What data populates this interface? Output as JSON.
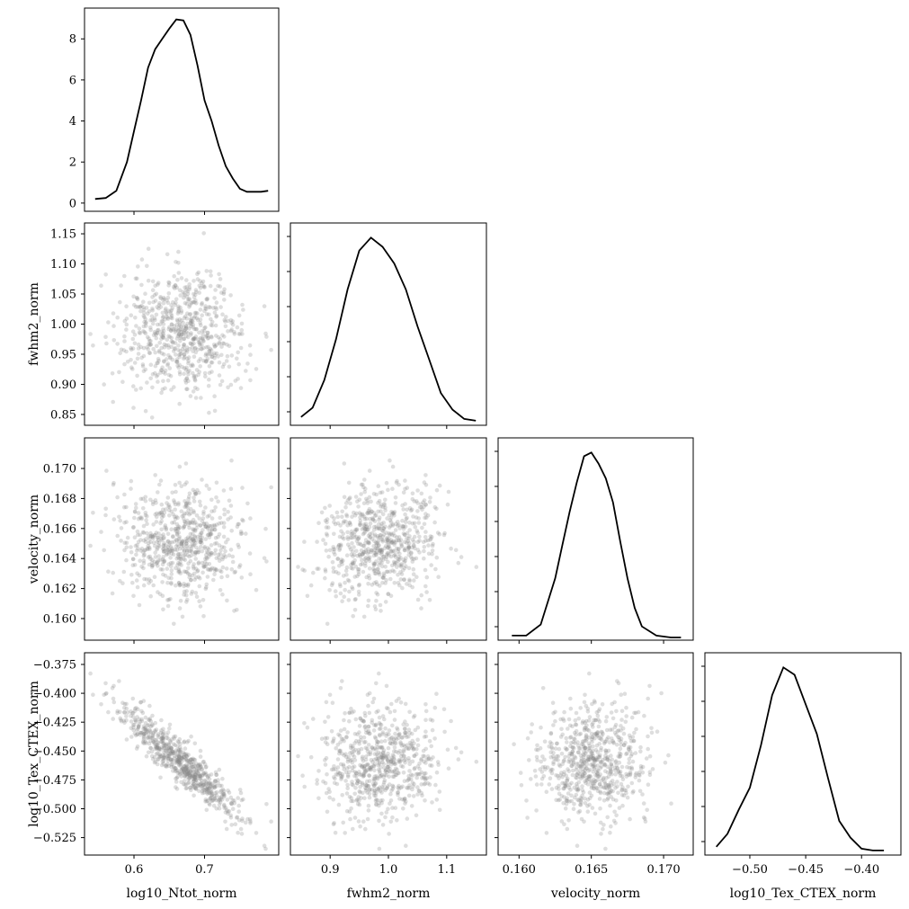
{
  "chart_data": {
    "type": "scatter",
    "layout": "corner",
    "grid": false,
    "colors": {
      "line": "#000000",
      "points": "#8a8a8a"
    },
    "variables": [
      "log10_Ntot_norm",
      "fwhm2_norm",
      "velocity_norm",
      "log10_Tex_CTEX_norm"
    ],
    "xlabels": [
      "log10_Ntot_norm",
      "fwhm2_norm",
      "velocity_norm",
      "log10_Tex_CTEX_norm"
    ],
    "ylabels": [
      "",
      "fwhm2_norm",
      "velocity_norm",
      "log10_Tex_CTEX_norm"
    ],
    "ranges": [
      [
        0.535,
        0.8
      ],
      [
        0.838,
        1.162
      ],
      [
        0.1588,
        0.1718
      ],
      [
        -0.537,
        -0.368
      ]
    ],
    "xticks": [
      [
        "0.6",
        "0.7"
      ],
      [
        "0.9",
        "1.0",
        "1.1"
      ],
      [
        "0.160",
        "0.165",
        "0.170"
      ],
      [
        "−0.50",
        "−0.45",
        "−0.40"
      ]
    ],
    "xtick_values": [
      [
        0.6,
        0.7
      ],
      [
        0.9,
        1.0,
        1.1
      ],
      [
        0.16,
        0.165,
        0.17
      ],
      [
        -0.5,
        -0.45,
        -0.4
      ]
    ],
    "yticks": [
      [],
      [
        "0.85",
        "0.90",
        "0.95",
        "1.00",
        "1.05",
        "1.10",
        "1.15"
      ],
      [
        "0.160",
        "0.162",
        "0.164",
        "0.166",
        "0.168",
        "0.170"
      ],
      [
        "−0.525",
        "−0.500",
        "−0.475",
        "−0.450",
        "−0.425",
        "−0.400",
        "−0.375"
      ]
    ],
    "ytick_values": [
      [],
      [
        0.85,
        0.9,
        0.95,
        1.0,
        1.05,
        1.1,
        1.15
      ],
      [
        0.16,
        0.162,
        0.164,
        0.166,
        0.168,
        0.17
      ],
      [
        -0.525,
        -0.5,
        -0.475,
        -0.45,
        -0.425,
        -0.4,
        -0.375
      ]
    ],
    "density_axis": {
      "ticks": [
        "0",
        "2",
        "4",
        "6",
        "8"
      ],
      "tick_values": [
        0,
        2,
        4,
        6,
        8
      ],
      "ylim": [
        -0.4,
        9.5
      ]
    },
    "marginals": [
      {
        "variable": "log10_Ntot_norm",
        "x": [
          0.545,
          0.56,
          0.575,
          0.59,
          0.6,
          0.61,
          0.62,
          0.63,
          0.64,
          0.65,
          0.66,
          0.67,
          0.68,
          0.69,
          0.7,
          0.71,
          0.72,
          0.73,
          0.74,
          0.75,
          0.76,
          0.77,
          0.78,
          0.79
        ],
        "density": [
          0.2,
          0.25,
          0.6,
          2.0,
          3.5,
          5.0,
          6.6,
          7.5,
          8.0,
          8.5,
          8.95,
          8.9,
          8.2,
          6.7,
          5.0,
          4.0,
          2.8,
          1.8,
          1.2,
          0.7,
          0.55,
          0.55,
          0.55,
          0.6
        ]
      },
      {
        "variable": "fwhm2_norm",
        "x": [
          0.85,
          0.87,
          0.89,
          0.91,
          0.93,
          0.95,
          0.97,
          0.99,
          1.01,
          1.03,
          1.05,
          1.07,
          1.09,
          1.11,
          1.13,
          1.15
        ],
        "density": [
          0.03,
          0.08,
          0.23,
          0.45,
          0.72,
          0.93,
          1.0,
          0.95,
          0.86,
          0.72,
          0.52,
          0.34,
          0.16,
          0.07,
          0.02,
          0.01
        ]
      },
      {
        "variable": "velocity_norm",
        "x": [
          0.1595,
          0.1605,
          0.1615,
          0.1625,
          0.163,
          0.1635,
          0.164,
          0.1645,
          0.165,
          0.1655,
          0.166,
          0.1665,
          0.167,
          0.1675,
          0.168,
          0.1685,
          0.1695,
          0.1705,
          0.1712
        ],
        "density": [
          0.01,
          0.01,
          0.07,
          0.32,
          0.5,
          0.68,
          0.84,
          0.98,
          1.0,
          0.94,
          0.86,
          0.73,
          0.52,
          0.32,
          0.16,
          0.06,
          0.01,
          0.0,
          0.0
        ]
      },
      {
        "variable": "log10_Tex_CTEX_norm",
        "x": [
          -0.53,
          -0.52,
          -0.51,
          -0.5,
          -0.49,
          -0.48,
          -0.47,
          -0.46,
          -0.45,
          -0.44,
          -0.43,
          -0.42,
          -0.41,
          -0.4,
          -0.39,
          -0.38
        ],
        "density": [
          0.03,
          0.1,
          0.23,
          0.35,
          0.58,
          0.85,
          1.0,
          0.96,
          0.8,
          0.64,
          0.4,
          0.17,
          0.08,
          0.02,
          0.01,
          0.01
        ]
      }
    ],
    "scatter": {
      "n_points": 700,
      "means": [
        0.669,
        0.985,
        0.1651,
        -0.461
      ],
      "stds": [
        0.045,
        0.05,
        0.0019,
        0.026
      ],
      "correlation": [
        [
          1.0,
          0.0,
          0.0,
          -0.93
        ],
        [
          0.0,
          1.0,
          0.1,
          0.0
        ],
        [
          0.0,
          0.1,
          1.0,
          0.0
        ],
        [
          -0.93,
          0.0,
          0.0,
          1.0
        ]
      ]
    }
  }
}
